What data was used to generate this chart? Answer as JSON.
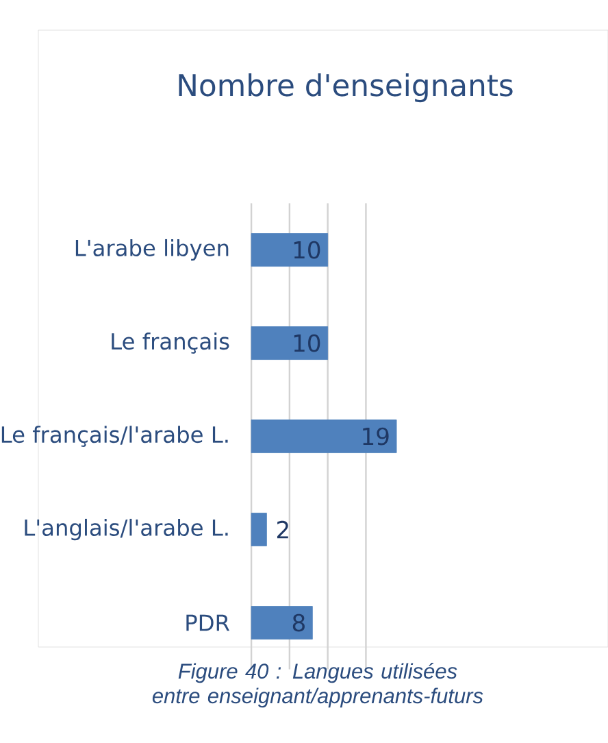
{
  "chart_data": {
    "type": "bar",
    "orientation": "horizontal",
    "title": "Nombre d'enseignants",
    "categories": [
      "L'arabe libyen",
      "Le français",
      "Le français/l'arabe L.",
      "L'anglais/l'arabe L.",
      "PDR"
    ],
    "values": [
      10,
      10,
      19,
      2,
      8
    ],
    "color": "#4f81bd",
    "data_labels": true,
    "xlim": [
      0,
      19
    ],
    "grid": "x",
    "tick_labels": "y",
    "annotations": [
      "Figure 40 : Langues utilisées entre enseignant/apprenants-futurs"
    ]
  }
}
